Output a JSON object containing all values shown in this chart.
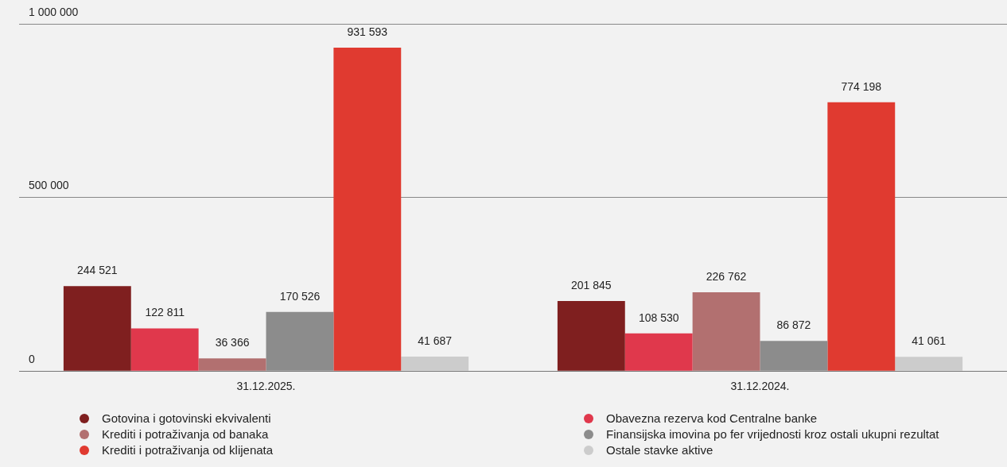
{
  "chart_data": {
    "type": "bar",
    "categories": [
      "31.12.2025.",
      "31.12.2024."
    ],
    "series": [
      {
        "name": "Gotovina i gotovinski ekvivalenti",
        "color": "#7f1f1f",
        "values": [
          244521,
          201845
        ],
        "value_labels": [
          "244 521",
          "201 845"
        ]
      },
      {
        "name": "Obavezna rezerva kod Centralne banke",
        "color": "#e0384c",
        "values": [
          122811,
          108530
        ],
        "value_labels": [
          "122 811",
          "108 530"
        ]
      },
      {
        "name": "Krediti i potraživanja od banaka",
        "color": "#b27070",
        "values": [
          36366,
          226762
        ],
        "value_labels": [
          "36 366",
          "226 762"
        ]
      },
      {
        "name": "Finansijska imovina po fer vrijednosti kroz ostali ukupni rezultat",
        "color": "#8c8c8c",
        "values": [
          170526,
          86872
        ],
        "value_labels": [
          "170 526",
          "86 872"
        ]
      },
      {
        "name": "Krediti i potraživanja od klijenata",
        "color": "#e03a30",
        "values": [
          931593,
          774198
        ],
        "value_labels": [
          "931 593",
          "774 198"
        ]
      },
      {
        "name": "Ostale stavke aktive",
        "color": "#cccccc",
        "values": [
          41687,
          41061
        ],
        "value_labels": [
          "41 687",
          "41 061"
        ]
      }
    ],
    "ylim": [
      0,
      1000000
    ],
    "yticks": [
      {
        "value": 0,
        "label": "0"
      },
      {
        "value": 500000,
        "label": "500 000"
      },
      {
        "value": 1000000,
        "label": "1 000 000"
      }
    ],
    "grid": "y",
    "legend": "bottom"
  }
}
